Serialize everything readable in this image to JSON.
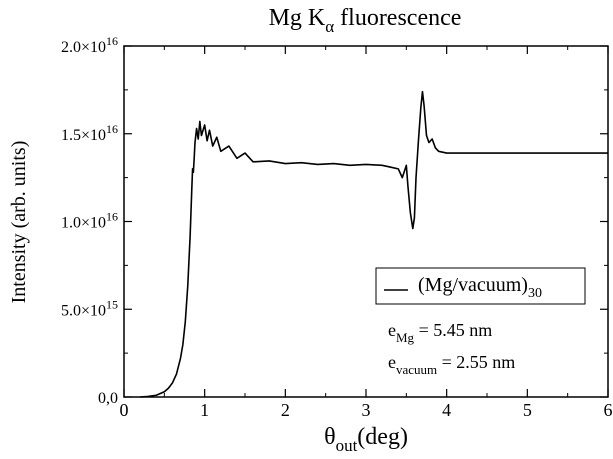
{
  "chart_data": {
    "type": "line",
    "title": {
      "main": "Mg K",
      "sub": "α",
      "rest": " fluorescence"
    },
    "xlabel": {
      "main": "θ",
      "sub": "out",
      "rest": "(deg)"
    },
    "ylabel": "Intensity (arb. units)",
    "xlim": [
      0,
      6
    ],
    "ylim": [
      0,
      2e+16
    ],
    "x_ticks": [
      {
        "value": 0,
        "label": "0"
      },
      {
        "value": 1,
        "label": "1"
      },
      {
        "value": 2,
        "label": "2"
      },
      {
        "value": 3,
        "label": "3"
      },
      {
        "value": 4,
        "label": "4"
      },
      {
        "value": 5,
        "label": "5"
      },
      {
        "value": 6,
        "label": "6"
      }
    ],
    "y_ticks": [
      {
        "value": 0,
        "label": "0,0",
        "mantissa": "",
        "exp": ""
      },
      {
        "value": 5000000000000000.0,
        "label": "",
        "mantissa": "5.0×10",
        "exp": "15"
      },
      {
        "value": 1e+16,
        "label": "",
        "mantissa": "1.0×10",
        "exp": "16"
      },
      {
        "value": 1.5e+16,
        "label": "",
        "mantissa": "1.5×10",
        "exp": "16"
      },
      {
        "value": 2e+16,
        "label": "",
        "mantissa": "2.0×10",
        "exp": "16"
      }
    ],
    "series": [
      {
        "name": "(Mg/vacuum)30",
        "color": "#000000",
        "x": [
          0.2,
          0.3,
          0.4,
          0.5,
          0.55,
          0.6,
          0.65,
          0.7,
          0.73,
          0.76,
          0.79,
          0.82,
          0.84,
          0.85,
          0.86,
          0.87,
          0.88,
          0.89,
          0.9,
          0.92,
          0.94,
          0.96,
          0.98,
          1.0,
          1.03,
          1.06,
          1.1,
          1.15,
          1.2,
          1.3,
          1.4,
          1.5,
          1.6,
          1.8,
          2.0,
          2.2,
          2.4,
          2.6,
          2.8,
          3.0,
          3.2,
          3.3,
          3.4,
          3.45,
          3.5,
          3.52,
          3.55,
          3.58,
          3.6,
          3.62,
          3.65,
          3.68,
          3.7,
          3.72,
          3.75,
          3.78,
          3.82,
          3.86,
          3.9,
          4.0,
          4.2,
          4.5,
          5.0,
          5.5,
          6.0
        ],
        "y": [
          0.0,
          30000000000000.0,
          100000000000000.0,
          300000000000000.0,
          500000000000000.0,
          800000000000000.0,
          1300000000000000.0,
          2200000000000000.0,
          3000000000000000.0,
          4300000000000000.0,
          6300000000000000.0,
          9200000000000000.0,
          1.18e+16,
          1.3e+16,
          1.28e+16,
          1.36e+16,
          1.45e+16,
          1.49e+16,
          1.53e+16,
          1.47e+16,
          1.57e+16,
          1.49e+16,
          1.52e+16,
          1.55e+16,
          1.46e+16,
          1.52e+16,
          1.43e+16,
          1.48e+16,
          1.4e+16,
          1.43e+16,
          1.36e+16,
          1.39e+16,
          1.34e+16,
          1.345e+16,
          1.33e+16,
          1.335e+16,
          1.325e+16,
          1.33e+16,
          1.32e+16,
          1.325e+16,
          1.32e+16,
          1.31e+16,
          1.3e+16,
          1.25e+16,
          1.32e+16,
          1.2e+16,
          1.05e+16,
          9600000000000000.0,
          1.02e+16,
          1.25e+16,
          1.46e+16,
          1.65e+16,
          1.74e+16,
          1.66e+16,
          1.49e+16,
          1.45e+16,
          1.47e+16,
          1.42e+16,
          1.4e+16,
          1.39e+16,
          1.39e+16,
          1.39e+16,
          1.39e+16,
          1.39e+16,
          1.39e+16
        ]
      }
    ],
    "legend": {
      "label": "(Mg/vacuum)",
      "label_sub": "30",
      "placement": "right"
    },
    "annotations": [
      {
        "main": "e",
        "sub": "Mg",
        "rest": " = 5.45 nm"
      },
      {
        "main": "e",
        "sub": "vacuum",
        "rest": " = 2.55 nm"
      }
    ],
    "grid": false
  }
}
